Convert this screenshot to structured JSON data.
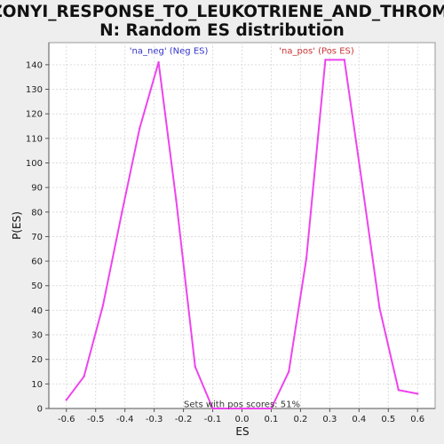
{
  "chart_data": {
    "type": "line",
    "title_lines": [
      "UZONYI_RESPONSE_TO_LEUKOTRIENE_AND_THROMBI",
      "N: Random ES distribution"
    ],
    "xlabel": "ES",
    "ylabel": "P(ES)",
    "xlim": [
      -0.66,
      0.66
    ],
    "ylim": [
      0,
      149
    ],
    "xticks": [
      -0.6,
      -0.5,
      -0.4,
      -0.3,
      -0.2,
      -0.1,
      0.0,
      0.1,
      0.2,
      0.3,
      0.4,
      0.5,
      0.6
    ],
    "xtick_labels": [
      "-0.6",
      "-0.5",
      "-0.4",
      "-0.3",
      "-0.2",
      "-0.1",
      "0.0",
      "0.1",
      "0.2",
      "0.3",
      "0.4",
      "0.5",
      "0.6"
    ],
    "yticks": [
      0,
      10,
      20,
      30,
      40,
      50,
      60,
      70,
      80,
      90,
      100,
      110,
      120,
      130,
      140
    ],
    "ytick_labels": [
      "0",
      "10",
      "20",
      "30",
      "40",
      "50",
      "60",
      "70",
      "80",
      "90",
      "100",
      "110",
      "120",
      "130",
      "140"
    ],
    "grid": true,
    "line_color": "#ee44ee",
    "series": [
      {
        "x": [
          -0.6,
          -0.54,
          -0.475,
          -0.41,
          -0.35,
          -0.285,
          -0.225,
          -0.16,
          -0.1,
          -0.035,
          0.03,
          0.1,
          0.16,
          0.22,
          0.285,
          0.35,
          0.41,
          0.47,
          0.535,
          0.6
        ],
        "y": [
          3.5,
          13,
          42,
          80,
          114,
          141,
          85,
          17,
          0,
          0,
          0,
          0,
          15,
          61,
          142,
          142,
          92,
          41,
          7.5,
          6
        ]
      }
    ],
    "annotations": [
      {
        "text": "'na_neg' (Neg ES)",
        "color": "#3333cc",
        "x": -0.25,
        "y": 146
      },
      {
        "text": "'na_pos' (Pos ES)",
        "color": "#cc3333",
        "x": 0.255,
        "y": 146
      },
      {
        "text": "Sets with pos scores: 51%",
        "color": "#333333",
        "x": 0.0,
        "y": 2
      }
    ]
  }
}
